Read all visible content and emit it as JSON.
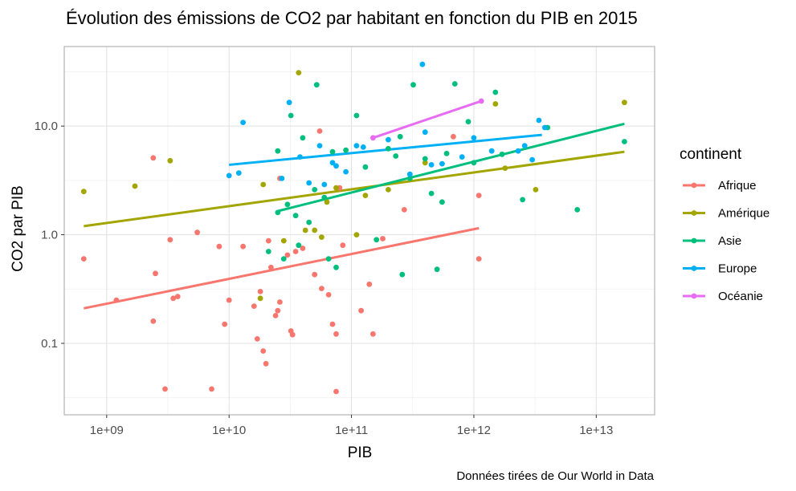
{
  "chart_data": {
    "type": "scatter",
    "title": "Évolution des émissions de CO2 par habitant en fonction du PIB en 2015",
    "xlabel": "PIB",
    "ylabel": "CO2 par PIB",
    "caption": "Données tirées de Our World in Data",
    "x_scale": "log10",
    "y_scale": "log10",
    "xlim": [
      450000000.0,
      30000000000000.0
    ],
    "ylim": [
      0.022,
      54
    ],
    "x_ticks": [
      {
        "value": 1000000000.0,
        "label": "1e+09"
      },
      {
        "value": 10000000000.0,
        "label": "1e+10"
      },
      {
        "value": 100000000000.0,
        "label": "1e+11"
      },
      {
        "value": 1000000000000.0,
        "label": "1e+12"
      },
      {
        "value": 10000000000000.0,
        "label": "1e+13"
      }
    ],
    "y_ticks": [
      {
        "value": 0.1,
        "label": "0.1"
      },
      {
        "value": 1,
        "label": "1.0"
      },
      {
        "value": 10,
        "label": "10.0"
      }
    ],
    "grid": true,
    "legend": {
      "title": "continent",
      "position": "right"
    },
    "series": [
      {
        "name": "Afrique",
        "color": "#F8766D",
        "trend": [
          [
            650000000.0,
            0.21
          ],
          [
            1100000000000.0,
            1.15
          ]
        ],
        "points": [
          [
            650000000.0,
            0.6
          ],
          [
            1200000000.0,
            0.25
          ],
          [
            2400000000.0,
            0.16
          ],
          [
            2500000000.0,
            0.44
          ],
          [
            2400000000.0,
            5.1
          ],
          [
            3000000000.0,
            0.038
          ],
          [
            3300000000.0,
            0.9
          ],
          [
            3500000000.0,
            0.26
          ],
          [
            3800000000.0,
            0.27
          ],
          [
            5500000000.0,
            1.05
          ],
          [
            7200000000.0,
            0.038
          ],
          [
            8300000000.0,
            0.78
          ],
          [
            9200000000.0,
            0.15
          ],
          [
            10000000000.0,
            0.25
          ],
          [
            13000000000.0,
            0.78
          ],
          [
            16000000000.0,
            0.22
          ],
          [
            17000000000.0,
            0.11
          ],
          [
            18000000000.0,
            0.3
          ],
          [
            19000000000.0,
            0.085
          ],
          [
            20000000000.0,
            0.065
          ],
          [
            21000000000.0,
            0.88
          ],
          [
            22000000000.0,
            0.5
          ],
          [
            24000000000.0,
            0.18
          ],
          [
            25000000000.0,
            0.2
          ],
          [
            26000000000.0,
            0.24
          ],
          [
            26000000000.0,
            3.3
          ],
          [
            30000000000.0,
            0.65
          ],
          [
            32000000000.0,
            0.13
          ],
          [
            33000000000.0,
            0.12
          ],
          [
            35000000000.0,
            0.7
          ],
          [
            40000000000.0,
            0.75
          ],
          [
            50000000000.0,
            0.43
          ],
          [
            55000000000.0,
            9.0
          ],
          [
            57000000000.0,
            0.32
          ],
          [
            65000000000.0,
            0.28
          ],
          [
            70000000000.0,
            0.15
          ],
          [
            75000000000.0,
            0.122
          ],
          [
            80000000000.0,
            2.7
          ],
          [
            85000000000.0,
            0.8
          ],
          [
            75000000000.0,
            0.036
          ],
          [
            120000000000.0,
            0.2
          ],
          [
            140000000000.0,
            0.35
          ],
          [
            150000000000.0,
            0.122
          ],
          [
            180000000000.0,
            0.92
          ],
          [
            270000000000.0,
            1.7
          ],
          [
            680000000000.0,
            8.0
          ],
          [
            1100000000000.0,
            2.3
          ],
          [
            1100000000000.0,
            0.6
          ]
        ]
      },
      {
        "name": "Amérique",
        "color": "#A3A500",
        "trend": [
          [
            650000000.0,
            1.2
          ],
          [
            17000000000000.0,
            5.8
          ]
        ],
        "points": [
          [
            650000000.0,
            2.5
          ],
          [
            1700000000.0,
            2.8
          ],
          [
            3300000000.0,
            4.8
          ],
          [
            18000000000.0,
            0.26
          ],
          [
            19000000000.0,
            2.9
          ],
          [
            28000000000.0,
            0.88
          ],
          [
            37000000000.0,
            31.0
          ],
          [
            42000000000.0,
            1.1
          ],
          [
            50000000000.0,
            1.1
          ],
          [
            57000000000.0,
            0.95
          ],
          [
            63000000000.0,
            2.0
          ],
          [
            75000000000.0,
            2.7
          ],
          [
            110000000000.0,
            1.0
          ],
          [
            130000000000.0,
            2.3
          ],
          [
            200000000000.0,
            2.6
          ],
          [
            400000000000.0,
            4.6
          ],
          [
            1500000000000.0,
            16.0
          ],
          [
            1800000000000.0,
            4.1
          ],
          [
            3200000000000.0,
            2.6
          ],
          [
            17000000000000.0,
            16.5
          ]
        ]
      },
      {
        "name": "Asie",
        "color": "#00BF7D",
        "trend": [
          [
            25000000000.0,
            1.65
          ],
          [
            17000000000000.0,
            10.5
          ]
        ],
        "points": [
          [
            21000000000.0,
            0.7
          ],
          [
            25000000000.0,
            1.6
          ],
          [
            25000000000.0,
            5.9
          ],
          [
            28000000000.0,
            0.6
          ],
          [
            30000000000.0,
            1.9
          ],
          [
            32000000000.0,
            12.5
          ],
          [
            35000000000.0,
            1.5
          ],
          [
            37000000000.0,
            0.8
          ],
          [
            40000000000.0,
            7.8
          ],
          [
            45000000000.0,
            1.3
          ],
          [
            50000000000.0,
            2.6
          ],
          [
            52000000000.0,
            24.0
          ],
          [
            60000000000.0,
            2.2
          ],
          [
            65000000000.0,
            0.6
          ],
          [
            70000000000.0,
            5.8
          ],
          [
            75000000000.0,
            0.5
          ],
          [
            90000000000.0,
            6.0
          ],
          [
            110000000000.0,
            12.5
          ],
          [
            130000000000.0,
            4.2
          ],
          [
            160000000000.0,
            0.9
          ],
          [
            200000000000.0,
            6.2
          ],
          [
            230000000000.0,
            5.3
          ],
          [
            250000000000.0,
            8.0
          ],
          [
            260000000000.0,
            0.43
          ],
          [
            300000000000.0,
            3.3
          ],
          [
            320000000000.0,
            24.0
          ],
          [
            400000000000.0,
            5.0
          ],
          [
            450000000000.0,
            2.4
          ],
          [
            500000000000.0,
            0.48
          ],
          [
            550000000000.0,
            2.0
          ],
          [
            600000000000.0,
            5.6
          ],
          [
            700000000000.0,
            24.5
          ],
          [
            900000000000.0,
            11.0
          ],
          [
            1000000000000.0,
            4.6
          ],
          [
            1500000000000.0,
            20.5
          ],
          [
            1700000000000.0,
            5.5
          ],
          [
            2500000000000.0,
            2.1
          ],
          [
            4000000000000.0,
            9.7
          ],
          [
            7000000000000.0,
            1.7
          ],
          [
            17000000000000.0,
            7.2
          ]
        ]
      },
      {
        "name": "Europe",
        "color": "#00B0F6",
        "trend": [
          [
            10000000000.0,
            4.4
          ],
          [
            3600000000000.0,
            8.3
          ]
        ],
        "points": [
          [
            10000000000.0,
            3.5
          ],
          [
            12000000000.0,
            3.7
          ],
          [
            13000000000.0,
            10.8
          ],
          [
            27000000000.0,
            3.3
          ],
          [
            31000000000.0,
            16.5
          ],
          [
            38000000000.0,
            5.2
          ],
          [
            45000000000.0,
            3.0
          ],
          [
            55000000000.0,
            6.6
          ],
          [
            60000000000.0,
            2.9
          ],
          [
            70000000000.0,
            4.6
          ],
          [
            75000000000.0,
            4.3
          ],
          [
            90000000000.0,
            3.8
          ],
          [
            110000000000.0,
            6.6
          ],
          [
            125000000000.0,
            6.4
          ],
          [
            200000000000.0,
            7.5
          ],
          [
            300000000000.0,
            3.6
          ],
          [
            380000000000.0,
            37.0
          ],
          [
            400000000000.0,
            8.8
          ],
          [
            450000000000.0,
            4.4
          ],
          [
            550000000000.0,
            4.5
          ],
          [
            800000000000.0,
            5.2
          ],
          [
            1000000000000.0,
            7.8
          ],
          [
            1400000000000.0,
            5.9
          ],
          [
            2300000000000.0,
            5.9
          ],
          [
            2600000000000.0,
            6.6
          ],
          [
            3000000000000.0,
            4.9
          ],
          [
            3400000000000.0,
            11.3
          ],
          [
            3800000000000.0,
            9.7
          ]
        ]
      },
      {
        "name": "Océanie",
        "color": "#E76BF3",
        "trend": [
          [
            150000000000.0,
            7.8
          ],
          [
            1150000000000.0,
            17.0
          ]
        ],
        "points": [
          [
            150000000000.0,
            7.8
          ],
          [
            1150000000000.0,
            17.0
          ]
        ]
      }
    ]
  }
}
